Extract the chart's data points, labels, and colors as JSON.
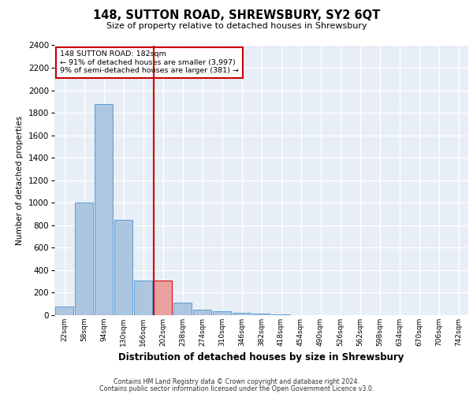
{
  "title": "148, SUTTON ROAD, SHREWSBURY, SY2 6QT",
  "subtitle": "Size of property relative to detached houses in Shrewsbury",
  "xlabel": "Distribution of detached houses by size in Shrewsbury",
  "ylabel": "Number of detached properties",
  "property_label": "148 SUTTON ROAD: 182sqm",
  "pct_smaller": 91,
  "count_smaller": 3997,
  "pct_semi_larger": 9,
  "count_semi_larger": 381,
  "bin_labels": [
    "22sqm",
    "58sqm",
    "94sqm",
    "130sqm",
    "166sqm",
    "202sqm",
    "238sqm",
    "274sqm",
    "310sqm",
    "346sqm",
    "382sqm",
    "418sqm",
    "454sqm",
    "490sqm",
    "526sqm",
    "562sqm",
    "598sqm",
    "634sqm",
    "670sqm",
    "706sqm",
    "742sqm"
  ],
  "bar_values": [
    80,
    1005,
    1880,
    850,
    310,
    310,
    110,
    50,
    35,
    20,
    15,
    5,
    3,
    2,
    1,
    1,
    0,
    0,
    0,
    0,
    0
  ],
  "bar_color": "#adc6e0",
  "bar_edge_color": "#5b9bd5",
  "highlight_bar_index": 5,
  "highlight_bar_color": "#e8a0a0",
  "highlight_bar_edge_color": "#cc0000",
  "vline_color": "#cc0000",
  "vline_x": 4.55,
  "annotation_box_edge_color": "#cc0000",
  "bg_color": "#e8eef5",
  "grid_color": "#ffffff",
  "ylim": [
    0,
    2400
  ],
  "yticks": [
    0,
    200,
    400,
    600,
    800,
    1000,
    1200,
    1400,
    1600,
    1800,
    2000,
    2200,
    2400
  ],
  "footer_line1": "Contains HM Land Registry data © Crown copyright and database right 2024.",
  "footer_line2": "Contains public sector information licensed under the Open Government Licence v3.0."
}
